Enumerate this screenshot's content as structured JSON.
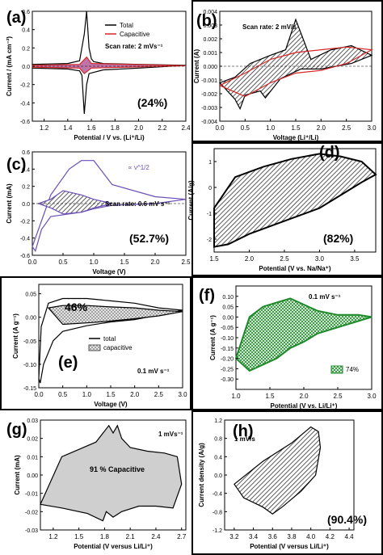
{
  "colors": {
    "ink": "#000000",
    "capacitive_red": "#d62728",
    "purple": "#6a4fb5",
    "green": "#1f8a2a",
    "hatch_grey": "#555555"
  },
  "chart_data": [
    {
      "id": "a",
      "type": "line",
      "panel_label": "(a)",
      "xlabel": "Potential / V vs. (Li⁺/Li)",
      "ylabel": "Current / (mA cm⁻²)",
      "xlim": [
        1.1,
        2.4
      ],
      "ylim": [
        -0.6,
        0.6
      ],
      "xticks": [
        "1.2",
        "1.4",
        "1.6",
        "1.8",
        "2.0",
        "2.2",
        "2.4"
      ],
      "yticks": [
        "-0.6",
        "-0.4",
        "-0.2",
        "0.0",
        "0.2",
        "0.4",
        "0.6"
      ],
      "legend": [
        "Total",
        "Capacitive"
      ],
      "annotation": "Scan rate: 2 mVs⁻¹",
      "percentage": "(24%)",
      "series": [
        {
          "name": "Total",
          "x": [
            1.1,
            1.4,
            1.5,
            1.54,
            1.56,
            1.58,
            1.6,
            1.62,
            1.7,
            2.0,
            2.4,
            2.0,
            1.7,
            1.58,
            1.56,
            1.54,
            1.52,
            1.5,
            1.4,
            1.1
          ],
          "y": [
            0.02,
            0.03,
            0.06,
            0.35,
            0.6,
            0.2,
            0.08,
            0.05,
            0.03,
            0.02,
            0.01,
            -0.02,
            -0.04,
            -0.08,
            -0.2,
            -0.52,
            -0.1,
            -0.05,
            -0.03,
            -0.02
          ]
        },
        {
          "name": "Capacitive",
          "x": [
            1.1,
            1.5,
            1.56,
            1.6,
            2.4,
            1.6,
            1.54,
            1.5,
            1.1
          ],
          "y": [
            0.01,
            0.02,
            0.1,
            0.03,
            0.005,
            -0.02,
            -0.08,
            -0.02,
            -0.01
          ]
        }
      ]
    },
    {
      "id": "b",
      "type": "line",
      "panel_label": "(b)",
      "xlabel": "Voltage (Li⁺/Li)",
      "ylabel": "Current (A)",
      "xlim": [
        0,
        3.0
      ],
      "ylim": [
        -0.004,
        0.004
      ],
      "xticks": [
        "0.0",
        "0.5",
        "1.0",
        "1.5",
        "2.0",
        "2.5",
        "3.0"
      ],
      "yticks": [
        "-0.004",
        "-0.003",
        "-0.002",
        "-0.001",
        "0.000",
        "0.001",
        "0.002",
        "0.003",
        "0.004"
      ],
      "annotation": "Scan rate: 2 mV/s",
      "series": [
        {
          "name": "",
          "x": [
            0.0,
            0.3,
            0.6,
            1.0,
            1.3,
            1.5,
            1.8,
            2.2,
            2.6,
            3.0,
            2.6,
            2.0,
            1.6,
            1.2,
            0.9,
            0.8,
            0.7,
            0.5,
            0.4,
            0.3,
            0.0
          ],
          "y": [
            -0.0012,
            -0.0008,
            0.0002,
            0.0008,
            0.0012,
            0.0034,
            0.0005,
            0.0012,
            0.0015,
            0.0008,
            0.0002,
            -0.0002,
            -0.0002,
            -0.0009,
            -0.0023,
            -0.0018,
            -0.0019,
            -0.0021,
            -0.0031,
            -0.0024,
            -0.0012
          ]
        },
        {
          "name": "",
          "x": [
            0.0,
            0.5,
            1.0,
            1.5,
            2.0,
            2.5,
            3.0,
            2.5,
            2.0,
            1.5,
            1.0,
            0.5,
            0.0
          ],
          "y": [
            -0.0014,
            -0.0005,
            0.0005,
            0.001,
            0.0012,
            0.0014,
            0.0012,
            0.0002,
            -0.0003,
            -0.0005,
            -0.0012,
            -0.0022,
            -0.0014
          ]
        }
      ]
    },
    {
      "id": "c",
      "type": "line",
      "panel_label": "(c)",
      "xlabel": "Voltage (V)",
      "ylabel": "Current (mA)",
      "xlim": [
        0,
        2.5
      ],
      "ylim": [
        -0.6,
        0.6
      ],
      "xticks": [
        "0.0",
        "0.5",
        "1.0",
        "1.5",
        "2.0",
        "2.5"
      ],
      "yticks": [
        "-0.6",
        "-0.4",
        "-0.2",
        "0.0",
        "0.2",
        "0.4",
        "0.6"
      ],
      "annotation": "Scan rate: 0.6 mV s⁻¹",
      "percentage": "(52.7%)",
      "inline_labels": [
        "∝ ν^1/2",
        "∝ ν"
      ],
      "series": [
        {
          "name": "",
          "x": [
            0.0,
            0.1,
            0.3,
            0.6,
            0.8,
            1.0,
            1.3,
            2.0,
            2.5,
            2.0,
            1.3,
            1.0,
            0.8,
            0.6,
            0.3,
            0.15,
            0.05,
            0.0
          ],
          "y": [
            -0.5,
            -0.3,
            0.1,
            0.4,
            0.5,
            0.5,
            0.22,
            0.08,
            0.05,
            0.0,
            -0.02,
            -0.06,
            -0.1,
            -0.12,
            -0.15,
            -0.3,
            -0.55,
            -0.5
          ]
        },
        {
          "name": "",
          "x": [
            0.1,
            0.3,
            0.5,
            0.8,
            1.0,
            1.3,
            1.0,
            0.8,
            0.5,
            0.3,
            0.1
          ],
          "y": [
            0.0,
            0.05,
            0.15,
            0.1,
            0.05,
            0.0,
            -0.05,
            -0.1,
            -0.12,
            -0.05,
            0.0
          ]
        }
      ]
    },
    {
      "id": "d",
      "type": "line",
      "panel_label": "(d)",
      "xlabel": "Potential (V vs. Na/Na⁺)",
      "ylabel": "Current (A/g)",
      "xlim": [
        1.5,
        3.8
      ],
      "ylim": [
        -2.5,
        1.5
      ],
      "xticks": [
        "1.5",
        "2.0",
        "2.5",
        "3.0",
        "3.5"
      ],
      "yticks": [
        "-2",
        "-1",
        "0",
        "1"
      ],
      "percentage": "(82%)",
      "series": [
        {
          "name": "",
          "x": [
            1.5,
            1.8,
            2.2,
            2.6,
            3.0,
            3.3,
            3.6,
            3.8,
            3.6,
            3.3,
            3.0,
            2.5,
            2.0,
            1.7,
            1.5
          ],
          "y": [
            -0.8,
            0.4,
            0.8,
            1.1,
            1.3,
            1.2,
            1.0,
            0.5,
            0.2,
            -0.3,
            -0.8,
            -1.3,
            -1.8,
            -2.2,
            -2.3
          ]
        }
      ]
    },
    {
      "id": "e",
      "type": "line",
      "panel_label": "(e)",
      "xlabel": "Voltage (V)",
      "ylabel": "Current (A g⁻¹)",
      "xlim": [
        0,
        3.0
      ],
      "ylim": [
        -0.15,
        0.07
      ],
      "xticks": [
        "0.0",
        "0.5",
        "1.0",
        "1.5",
        "2.0",
        "2.5",
        "3.0"
      ],
      "yticks": [
        "-0.15",
        "-0.10",
        "-0.05",
        "0.00",
        "0.05"
      ],
      "legend": [
        "total",
        "capacitive"
      ],
      "annotation": "0.1 mV s⁻¹",
      "percentage": "46%",
      "series": [
        {
          "name": "total",
          "x": [
            0.0,
            0.05,
            0.2,
            0.5,
            1.0,
            1.5,
            2.0,
            2.5,
            3.0,
            2.5,
            2.0,
            1.5,
            1.0,
            0.5,
            0.3,
            0.1,
            0.03,
            0.0
          ],
          "y": [
            -0.13,
            -0.02,
            0.03,
            0.04,
            0.04,
            0.035,
            0.03,
            0.02,
            0.015,
            0.005,
            -0.005,
            -0.01,
            -0.018,
            -0.03,
            -0.05,
            -0.1,
            -0.14,
            -0.13
          ]
        },
        {
          "name": "capacitive",
          "x": [
            0.2,
            0.5,
            1.0,
            1.5,
            2.0,
            2.5,
            3.0,
            2.5,
            2.0,
            1.5,
            1.0,
            0.5,
            0.2
          ],
          "y": [
            0.02,
            0.025,
            0.025,
            0.022,
            0.02,
            0.015,
            0.012,
            0.003,
            -0.003,
            -0.008,
            -0.012,
            -0.015,
            0.02
          ]
        }
      ]
    },
    {
      "id": "f",
      "type": "line",
      "panel_label": "(f)",
      "xlabel": "Potential (V vs. Li/Li⁺)",
      "ylabel": "Current (A g⁻¹)",
      "xlim": [
        1.0,
        3.0
      ],
      "ylim": [
        -0.35,
        0.15
      ],
      "xticks": [
        "1.0",
        "1.5",
        "2.0",
        "2.5",
        "3.0"
      ],
      "yticks": [
        "-0.30",
        "-0.25",
        "-0.20",
        "-0.15",
        "-0.10",
        "-0.05",
        "0.00",
        "0.05",
        "0.10"
      ],
      "annotation": "0.1 mV s⁻¹",
      "legend": [
        "74%"
      ],
      "series": [
        {
          "name": "",
          "x": [
            1.0,
            1.2,
            1.4,
            1.6,
            1.8,
            2.0,
            2.2,
            2.5,
            2.8,
            3.0,
            2.8,
            2.5,
            2.2,
            2.0,
            1.8,
            1.6,
            1.4,
            1.2,
            1.0
          ],
          "y": [
            -0.2,
            0.0,
            0.05,
            0.07,
            0.09,
            0.06,
            0.03,
            0.01,
            0.01,
            0.0,
            -0.02,
            -0.05,
            -0.08,
            -0.12,
            -0.15,
            -0.2,
            -0.23,
            -0.26,
            -0.2
          ]
        }
      ]
    },
    {
      "id": "g",
      "type": "line",
      "panel_label": "(g)",
      "xlabel": "Potential (V versus Li/Li⁺)",
      "ylabel": "Current (mA)",
      "xlim": [
        1.05,
        2.75
      ],
      "ylim": [
        -0.03,
        0.03
      ],
      "xticks": [
        "1.2",
        "1.5",
        "1.8",
        "2.1",
        "2.4",
        "2.7"
      ],
      "yticks": [
        "-0.03",
        "-0.02",
        "-0.01",
        "0.00",
        "0.01",
        "0.02",
        "0.03"
      ],
      "annotation": "1 mVs⁻¹",
      "percentage": "91 % Capacitive",
      "series": [
        {
          "name": "",
          "x": [
            1.05,
            1.3,
            1.5,
            1.7,
            1.85,
            1.9,
            1.95,
            2.0,
            2.1,
            2.3,
            2.5,
            2.65,
            2.7,
            2.6,
            2.4,
            2.2,
            2.0,
            1.9,
            1.82,
            1.78,
            1.6,
            1.3,
            1.05
          ],
          "y": [
            -0.016,
            0.01,
            0.014,
            0.018,
            0.027,
            0.023,
            0.027,
            0.02,
            0.015,
            0.013,
            0.012,
            0.01,
            -0.005,
            -0.018,
            -0.017,
            -0.017,
            -0.02,
            -0.023,
            -0.02,
            -0.025,
            -0.021,
            -0.018,
            -0.016
          ]
        }
      ]
    },
    {
      "id": "h",
      "type": "line",
      "panel_label": "(h)",
      "xlabel": "Potential (V versus Li/Li⁺)",
      "ylabel": "Current density (A/g)",
      "xlim": [
        3.1,
        4.45
      ],
      "ylim": [
        -1.2,
        1.2
      ],
      "xticks": [
        "3.2",
        "3.4",
        "3.6",
        "3.8",
        "4.0",
        "4.2",
        "4.4"
      ],
      "yticks": [
        "-1.2",
        "-0.8",
        "-0.4",
        "0.0",
        "0.4",
        "0.8",
        "1.2"
      ],
      "annotation": "1 mV/s",
      "percentage": "(90.4%)",
      "series": [
        {
          "name": "",
          "x": [
            3.2,
            3.5,
            3.8,
            4.0,
            4.08,
            4.1,
            4.05,
            3.9,
            3.7,
            3.6,
            3.5,
            3.3,
            3.2
          ],
          "y": [
            -0.2,
            0.3,
            0.7,
            1.05,
            0.95,
            0.6,
            0.0,
            -0.35,
            -0.7,
            -0.85,
            -0.7,
            -0.5,
            -0.2
          ]
        }
      ]
    }
  ]
}
